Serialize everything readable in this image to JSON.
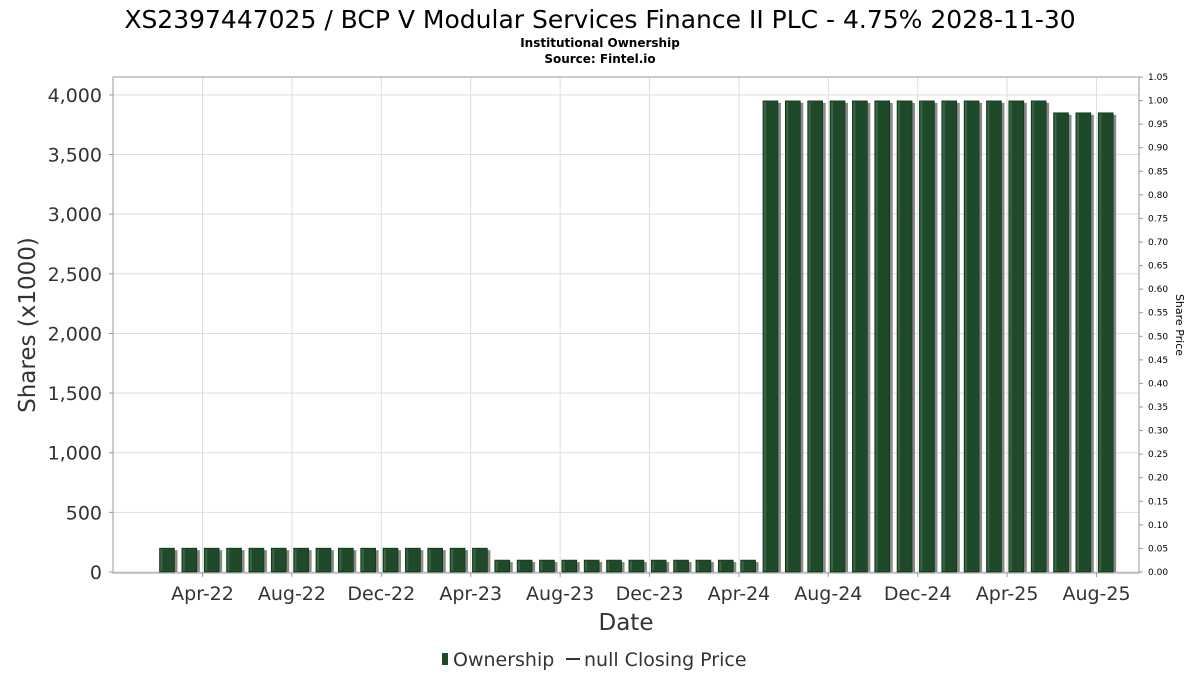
{
  "chart_data": {
    "type": "bar",
    "title": "XS2397447025 / BCP V Modular Services Finance II PLC - 4.75% 2028-11-30",
    "subtitle": "Institutional Ownership",
    "source": "Source: Fintel.io",
    "xlabel": "Date",
    "ylabel": "Shares (x1000)",
    "y2label": "Share Price",
    "ylim": [
      0,
      4150
    ],
    "y2lim": [
      0,
      1.05
    ],
    "yticks": [
      {
        "value": 0,
        "label": "0"
      },
      {
        "value": 500,
        "label": "500"
      },
      {
        "value": 1000,
        "label": "1,000"
      },
      {
        "value": 1500,
        "label": "1,500"
      },
      {
        "value": 2000,
        "label": "2,000"
      },
      {
        "value": 2500,
        "label": "2,500"
      },
      {
        "value": 3000,
        "label": "3,000"
      },
      {
        "value": 3500,
        "label": "3,500"
      },
      {
        "value": 4000,
        "label": "4,000"
      }
    ],
    "y2ticks": [
      "0.00",
      "0.05",
      "0.10",
      "0.15",
      "0.20",
      "0.25",
      "0.30",
      "0.35",
      "0.40",
      "0.45",
      "0.50",
      "0.55",
      "0.60",
      "0.65",
      "0.70",
      "0.75",
      "0.80",
      "0.85",
      "0.90",
      "0.95",
      "1.00",
      "1.05"
    ],
    "xticks": [
      {
        "label": "Apr-22",
        "index": 1.5
      },
      {
        "label": "Aug-22",
        "index": 5.5
      },
      {
        "label": "Dec-22",
        "index": 9.5
      },
      {
        "label": "Apr-23",
        "index": 13.5
      },
      {
        "label": "Aug-23",
        "index": 17.5
      },
      {
        "label": "Dec-23",
        "index": 21.5
      },
      {
        "label": "Apr-24",
        "index": 25.5
      },
      {
        "label": "Aug-24",
        "index": 29.5
      },
      {
        "label": "Dec-24",
        "index": 33.5
      },
      {
        "label": "Apr-25",
        "index": 37.5
      },
      {
        "label": "Aug-25",
        "index": 41.5
      }
    ],
    "grid": true,
    "legend_position": "bottom",
    "series": [
      {
        "name": "Ownership",
        "color": "#1f4a2a",
        "values": [
          200,
          200,
          200,
          200,
          200,
          200,
          200,
          200,
          200,
          200,
          200,
          200,
          200,
          200,
          200,
          100,
          100,
          100,
          100,
          100,
          100,
          100,
          100,
          100,
          100,
          100,
          100,
          3950,
          3950,
          3950,
          3950,
          3950,
          3950,
          3950,
          3950,
          3950,
          3950,
          3950,
          3950,
          3950,
          3850,
          3850,
          3850
        ]
      },
      {
        "name": "null Closing Price",
        "color": "#333333",
        "values": []
      }
    ]
  }
}
